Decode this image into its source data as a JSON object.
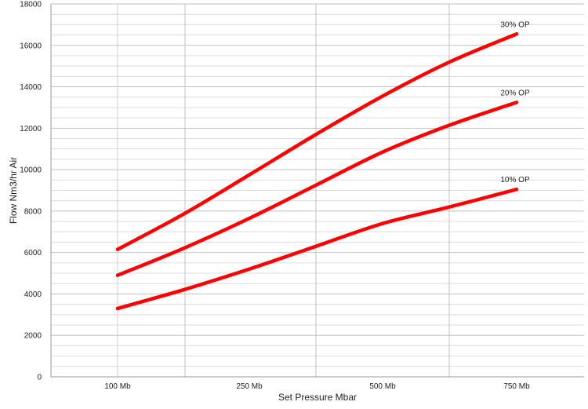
{
  "chart_data": {
    "type": "line",
    "title": "",
    "xlabel": "Set Pressure Mbar",
    "ylabel": "Flow Nm3/hr Air",
    "categories": [
      "100 Mb",
      "250 Mb",
      "500 Mb",
      "750 Mb"
    ],
    "ylim": [
      0,
      18000
    ],
    "y_ticks": [
      0,
      2000,
      4000,
      6000,
      8000,
      10000,
      12000,
      14000,
      16000,
      18000
    ],
    "grid": true,
    "line_color": "#ff0000",
    "series": [
      {
        "name": "10% OP",
        "x": [
          0,
          0.5,
          1,
          1.5,
          2,
          2.5,
          3
        ],
        "values": [
          3300,
          4200,
          5200,
          6300,
          7400,
          8200,
          9050
        ]
      },
      {
        "name": "20% OP",
        "x": [
          0,
          0.5,
          1,
          1.5,
          2,
          2.5,
          3
        ],
        "values": [
          4900,
          6200,
          7650,
          9250,
          10850,
          12150,
          13250
        ]
      },
      {
        "name": "30% OP",
        "x": [
          0,
          0.5,
          1,
          1.5,
          2,
          2.5,
          3
        ],
        "values": [
          6150,
          7850,
          9750,
          11700,
          13550,
          15200,
          16550
        ]
      }
    ]
  }
}
